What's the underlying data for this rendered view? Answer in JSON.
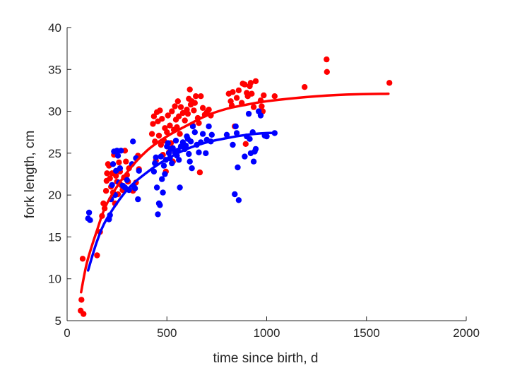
{
  "chart_data": {
    "type": "scatter",
    "title": "",
    "xlabel": "time since birth, d",
    "ylabel": "fork length, cm",
    "xlim": [
      0,
      2000
    ],
    "ylim": [
      5,
      40
    ],
    "xticks": [
      0,
      500,
      1000,
      1500,
      2000
    ],
    "yticks": [
      5,
      10,
      15,
      20,
      25,
      30,
      35,
      40
    ],
    "grid": false,
    "legend": "none",
    "series": [
      {
        "color": "#ff0000",
        "marker": "filled-circle",
        "points": [
          [
            68,
            6.2
          ],
          [
            72,
            7.5
          ],
          [
            78,
            12.4
          ],
          [
            82,
            5.8
          ],
          [
            150,
            12.8
          ],
          [
            165,
            15.6
          ],
          [
            175,
            17.5
          ],
          [
            182,
            19.0
          ],
          [
            188,
            18.4
          ],
          [
            195,
            20.5
          ],
          [
            198,
            21.7
          ],
          [
            200,
            22.6
          ],
          [
            205,
            23.7
          ],
          [
            210,
            23.5
          ],
          [
            215,
            22.0
          ],
          [
            220,
            21.0
          ],
          [
            225,
            22.6
          ],
          [
            230,
            20.3
          ],
          [
            235,
            24.8
          ],
          [
            240,
            19.0
          ],
          [
            245,
            22.3
          ],
          [
            250,
            21.6
          ],
          [
            255,
            20.1
          ],
          [
            260,
            23.9
          ],
          [
            265,
            22.8
          ],
          [
            270,
            21.2
          ],
          [
            278,
            20.6
          ],
          [
            285,
            22.1
          ],
          [
            290,
            25.3
          ],
          [
            295,
            24.0
          ],
          [
            300,
            22.4
          ],
          [
            305,
            21.6
          ],
          [
            310,
            23.2
          ],
          [
            330,
            20.5
          ],
          [
            345,
            21.5
          ],
          [
            355,
            24.7
          ],
          [
            360,
            23.1
          ],
          [
            425,
            27.3
          ],
          [
            430,
            28.5
          ],
          [
            435,
            29.4
          ],
          [
            440,
            26.4
          ],
          [
            445,
            24.1
          ],
          [
            450,
            29.9
          ],
          [
            455,
            28.8
          ],
          [
            460,
            27.1
          ],
          [
            465,
            30.1
          ],
          [
            470,
            26.0
          ],
          [
            475,
            29.1
          ],
          [
            480,
            24.8
          ],
          [
            485,
            26.5
          ],
          [
            490,
            28.0
          ],
          [
            495,
            22.8
          ],
          [
            500,
            27.5
          ],
          [
            505,
            29.5
          ],
          [
            510,
            25.1
          ],
          [
            515,
            28.3
          ],
          [
            520,
            26.2
          ],
          [
            525,
            30.0
          ],
          [
            530,
            24.0
          ],
          [
            535,
            27.8
          ],
          [
            540,
            30.6
          ],
          [
            545,
            29.0
          ],
          [
            550,
            28.1
          ],
          [
            555,
            31.2
          ],
          [
            560,
            29.4
          ],
          [
            565,
            27.3
          ],
          [
            570,
            30.5
          ],
          [
            580,
            29.8
          ],
          [
            590,
            28.9
          ],
          [
            600,
            30.2
          ],
          [
            605,
            29.7
          ],
          [
            610,
            31.5
          ],
          [
            615,
            32.6
          ],
          [
            620,
            30.8
          ],
          [
            625,
            31.2
          ],
          [
            630,
            28.3
          ],
          [
            635,
            30.1
          ],
          [
            640,
            31.0
          ],
          [
            645,
            31.8
          ],
          [
            655,
            29.2
          ],
          [
            660,
            28.6
          ],
          [
            665,
            22.7
          ],
          [
            670,
            31.8
          ],
          [
            680,
            30.4
          ],
          [
            690,
            29.6
          ],
          [
            700,
            29.9
          ],
          [
            710,
            30.2
          ],
          [
            720,
            29.5
          ],
          [
            810,
            32.1
          ],
          [
            820,
            31.2
          ],
          [
            825,
            30.7
          ],
          [
            830,
            32.3
          ],
          [
            840,
            28.2
          ],
          [
            850,
            31.6
          ],
          [
            860,
            32.5
          ],
          [
            875,
            31.0
          ],
          [
            880,
            33.3
          ],
          [
            890,
            33.2
          ],
          [
            895,
            26.1
          ],
          [
            900,
            32.2
          ],
          [
            905,
            31.8
          ],
          [
            915,
            33.0
          ],
          [
            920,
            33.4
          ],
          [
            925,
            32.1
          ],
          [
            935,
            30.5
          ],
          [
            945,
            33.6
          ],
          [
            970,
            31.3
          ],
          [
            975,
            30.6
          ],
          [
            980,
            30.0
          ],
          [
            985,
            31.9
          ],
          [
            1040,
            31.8
          ],
          [
            1190,
            32.9
          ],
          [
            1300,
            36.2
          ],
          [
            1302,
            34.7
          ],
          [
            1615,
            33.4
          ]
        ]
      },
      {
        "color": "#0000ff",
        "marker": "filled-circle",
        "points": [
          [
            105,
            17.2
          ],
          [
            110,
            17.9
          ],
          [
            115,
            17.0
          ],
          [
            210,
            17.1
          ],
          [
            215,
            17.6
          ],
          [
            220,
            19.5
          ],
          [
            225,
            21.2
          ],
          [
            230,
            23.7
          ],
          [
            235,
            25.2
          ],
          [
            240,
            20.0
          ],
          [
            245,
            22.9
          ],
          [
            250,
            25.3
          ],
          [
            255,
            24.7
          ],
          [
            260,
            21.5
          ],
          [
            265,
            23.2
          ],
          [
            270,
            25.3
          ],
          [
            280,
            21.1
          ],
          [
            290,
            20.9
          ],
          [
            300,
            21.8
          ],
          [
            310,
            20.6
          ],
          [
            325,
            23.7
          ],
          [
            330,
            26.4
          ],
          [
            335,
            21.0
          ],
          [
            340,
            20.8
          ],
          [
            345,
            24.4
          ],
          [
            355,
            19.5
          ],
          [
            360,
            22.9
          ],
          [
            435,
            22.8
          ],
          [
            440,
            23.8
          ],
          [
            445,
            24.5
          ],
          [
            450,
            20.9
          ],
          [
            455,
            17.7
          ],
          [
            460,
            19.0
          ],
          [
            465,
            18.8
          ],
          [
            470,
            24.6
          ],
          [
            475,
            21.9
          ],
          [
            480,
            20.3
          ],
          [
            485,
            23.5
          ],
          [
            490,
            22.5
          ],
          [
            495,
            24.2
          ],
          [
            500,
            25.8
          ],
          [
            505,
            26.2
          ],
          [
            510,
            25.0
          ],
          [
            515,
            24.4
          ],
          [
            520,
            25.5
          ],
          [
            525,
            23.8
          ],
          [
            530,
            25.6
          ],
          [
            540,
            25.1
          ],
          [
            545,
            26.5
          ],
          [
            550,
            24.7
          ],
          [
            555,
            25.3
          ],
          [
            560,
            24.2
          ],
          [
            565,
            20.9
          ],
          [
            570,
            25.8
          ],
          [
            580,
            26.3
          ],
          [
            590,
            25.5
          ],
          [
            595,
            25.9
          ],
          [
            600,
            27.0
          ],
          [
            605,
            26.7
          ],
          [
            610,
            24.9
          ],
          [
            615,
            24.0
          ],
          [
            620,
            26.4
          ],
          [
            625,
            23.2
          ],
          [
            630,
            28.2
          ],
          [
            640,
            27.5
          ],
          [
            650,
            26.0
          ],
          [
            660,
            25.1
          ],
          [
            670,
            26.3
          ],
          [
            680,
            27.3
          ],
          [
            695,
            25.0
          ],
          [
            700,
            26.6
          ],
          [
            710,
            28.2
          ],
          [
            720,
            26.4
          ],
          [
            725,
            27.2
          ],
          [
            800,
            27.2
          ],
          [
            830,
            26.0
          ],
          [
            840,
            20.1
          ],
          [
            845,
            28.2
          ],
          [
            850,
            27.4
          ],
          [
            855,
            23.3
          ],
          [
            860,
            19.4
          ],
          [
            890,
            24.6
          ],
          [
            900,
            27.0
          ],
          [
            910,
            29.7
          ],
          [
            915,
            26.7
          ],
          [
            920,
            25.0
          ],
          [
            930,
            27.5
          ],
          [
            935,
            24.0
          ],
          [
            940,
            25.2
          ],
          [
            945,
            25.5
          ],
          [
            960,
            30.0
          ],
          [
            970,
            29.5
          ],
          [
            990,
            27.1
          ],
          [
            1000,
            27.0
          ],
          [
            1040,
            27.4
          ]
        ]
      }
    ],
    "fit_lines": [
      {
        "color": "#ff0000",
        "points": [
          [
            70,
            8.4
          ],
          [
            100,
            12.0
          ],
          [
            150,
            15.8
          ],
          [
            200,
            19.0
          ],
          [
            300,
            22.7
          ],
          [
            400,
            25.3
          ],
          [
            500,
            27.0
          ],
          [
            600,
            28.3
          ],
          [
            700,
            29.5
          ],
          [
            800,
            30.3
          ],
          [
            900,
            30.8
          ],
          [
            1000,
            31.2
          ],
          [
            1200,
            31.7
          ],
          [
            1400,
            32.0
          ],
          [
            1610,
            32.1
          ]
        ]
      },
      {
        "color": "#0000ff",
        "points": [
          [
            105,
            11.0
          ],
          [
            150,
            14.5
          ],
          [
            200,
            17.2
          ],
          [
            300,
            20.6
          ],
          [
            400,
            22.7
          ],
          [
            500,
            24.3
          ],
          [
            600,
            25.5
          ],
          [
            700,
            26.3
          ],
          [
            800,
            26.8
          ],
          [
            900,
            27.2
          ],
          [
            1000,
            27.4
          ],
          [
            1040,
            27.4
          ]
        ]
      }
    ]
  }
}
